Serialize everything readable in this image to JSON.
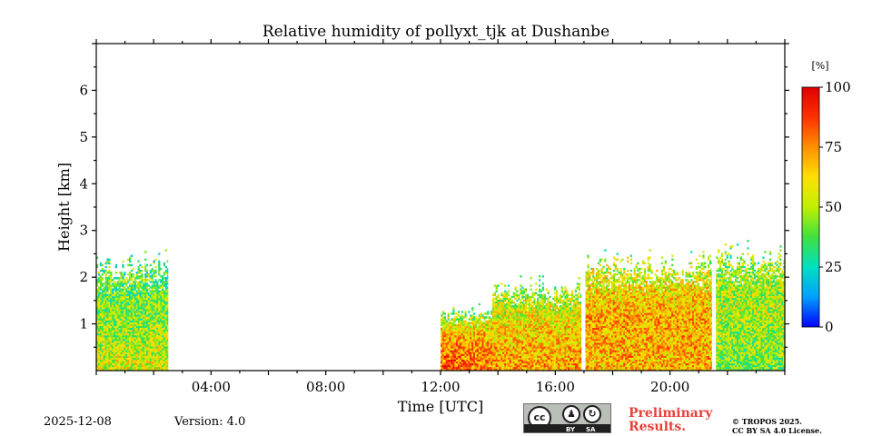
{
  "chart_data": {
    "type": "heatmap",
    "title": "Relative humidity of pollyxt_tjk at Dushanbe",
    "xlabel": "Time [UTC]",
    "ylabel": "Height [km]",
    "xlim_hours": [
      0,
      24
    ],
    "ylim_km": [
      0,
      7
    ],
    "x_ticks": [
      {
        "hour": 4,
        "label": "04:00"
      },
      {
        "hour": 8,
        "label": "08:00"
      },
      {
        "hour": 12,
        "label": "12:00"
      },
      {
        "hour": 16,
        "label": "16:00"
      },
      {
        "hour": 20,
        "label": "20:00"
      }
    ],
    "y_ticks": [
      {
        "km": 1,
        "label": "1"
      },
      {
        "km": 2,
        "label": "2"
      },
      {
        "km": 3,
        "label": "3"
      },
      {
        "km": 4,
        "label": "4"
      },
      {
        "km": 5,
        "label": "5"
      },
      {
        "km": 6,
        "label": "6"
      }
    ],
    "colorbar": {
      "unit": "[%]",
      "range": [
        0,
        100
      ],
      "ticks": [
        {
          "value": 0,
          "label": "0"
        },
        {
          "value": 25,
          "label": "25"
        },
        {
          "value": 50,
          "label": "50"
        },
        {
          "value": 75,
          "label": "75"
        },
        {
          "value": 100,
          "label": "100"
        }
      ],
      "colors": [
        "#0000ff",
        "#00a0ff",
        "#00e0c0",
        "#40e040",
        "#c0f000",
        "#ffe000",
        "#ff9000",
        "#ff3000",
        "#e00000"
      ]
    },
    "data_segments": [
      {
        "start_h": 0.0,
        "end_h": 2.5,
        "top_km": 2.3,
        "rh_near_ground": 55,
        "rh_mid": 45,
        "rh_top": 35
      },
      {
        "start_h": 12.0,
        "end_h": 13.8,
        "top_km": 1.3,
        "rh_near_ground": 80,
        "rh_mid": 72,
        "rh_top": 40
      },
      {
        "start_h": 13.8,
        "end_h": 16.9,
        "top_km": 1.8,
        "rh_near_ground": 72,
        "rh_mid": 62,
        "rh_top": 45
      },
      {
        "start_h": 17.05,
        "end_h": 21.45,
        "top_km": 2.3,
        "rh_near_ground": 68,
        "rh_mid": 70,
        "rh_top": 50
      },
      {
        "start_h": 21.6,
        "end_h": 24.0,
        "top_km": 2.5,
        "rh_near_ground": 42,
        "rh_mid": 50,
        "rh_top": 45
      }
    ]
  },
  "footer": {
    "date": "2025-12-08",
    "version": "Version: 4.0",
    "preliminary_line1": "Preliminary",
    "preliminary_line2": "Results.",
    "copyright_line1": "© TROPOS 2025.",
    "copyright_line2": "CC BY SA 4.0 License.",
    "cc_badge": {
      "cc": "cc",
      "by": "BY",
      "sa": "SA"
    }
  }
}
